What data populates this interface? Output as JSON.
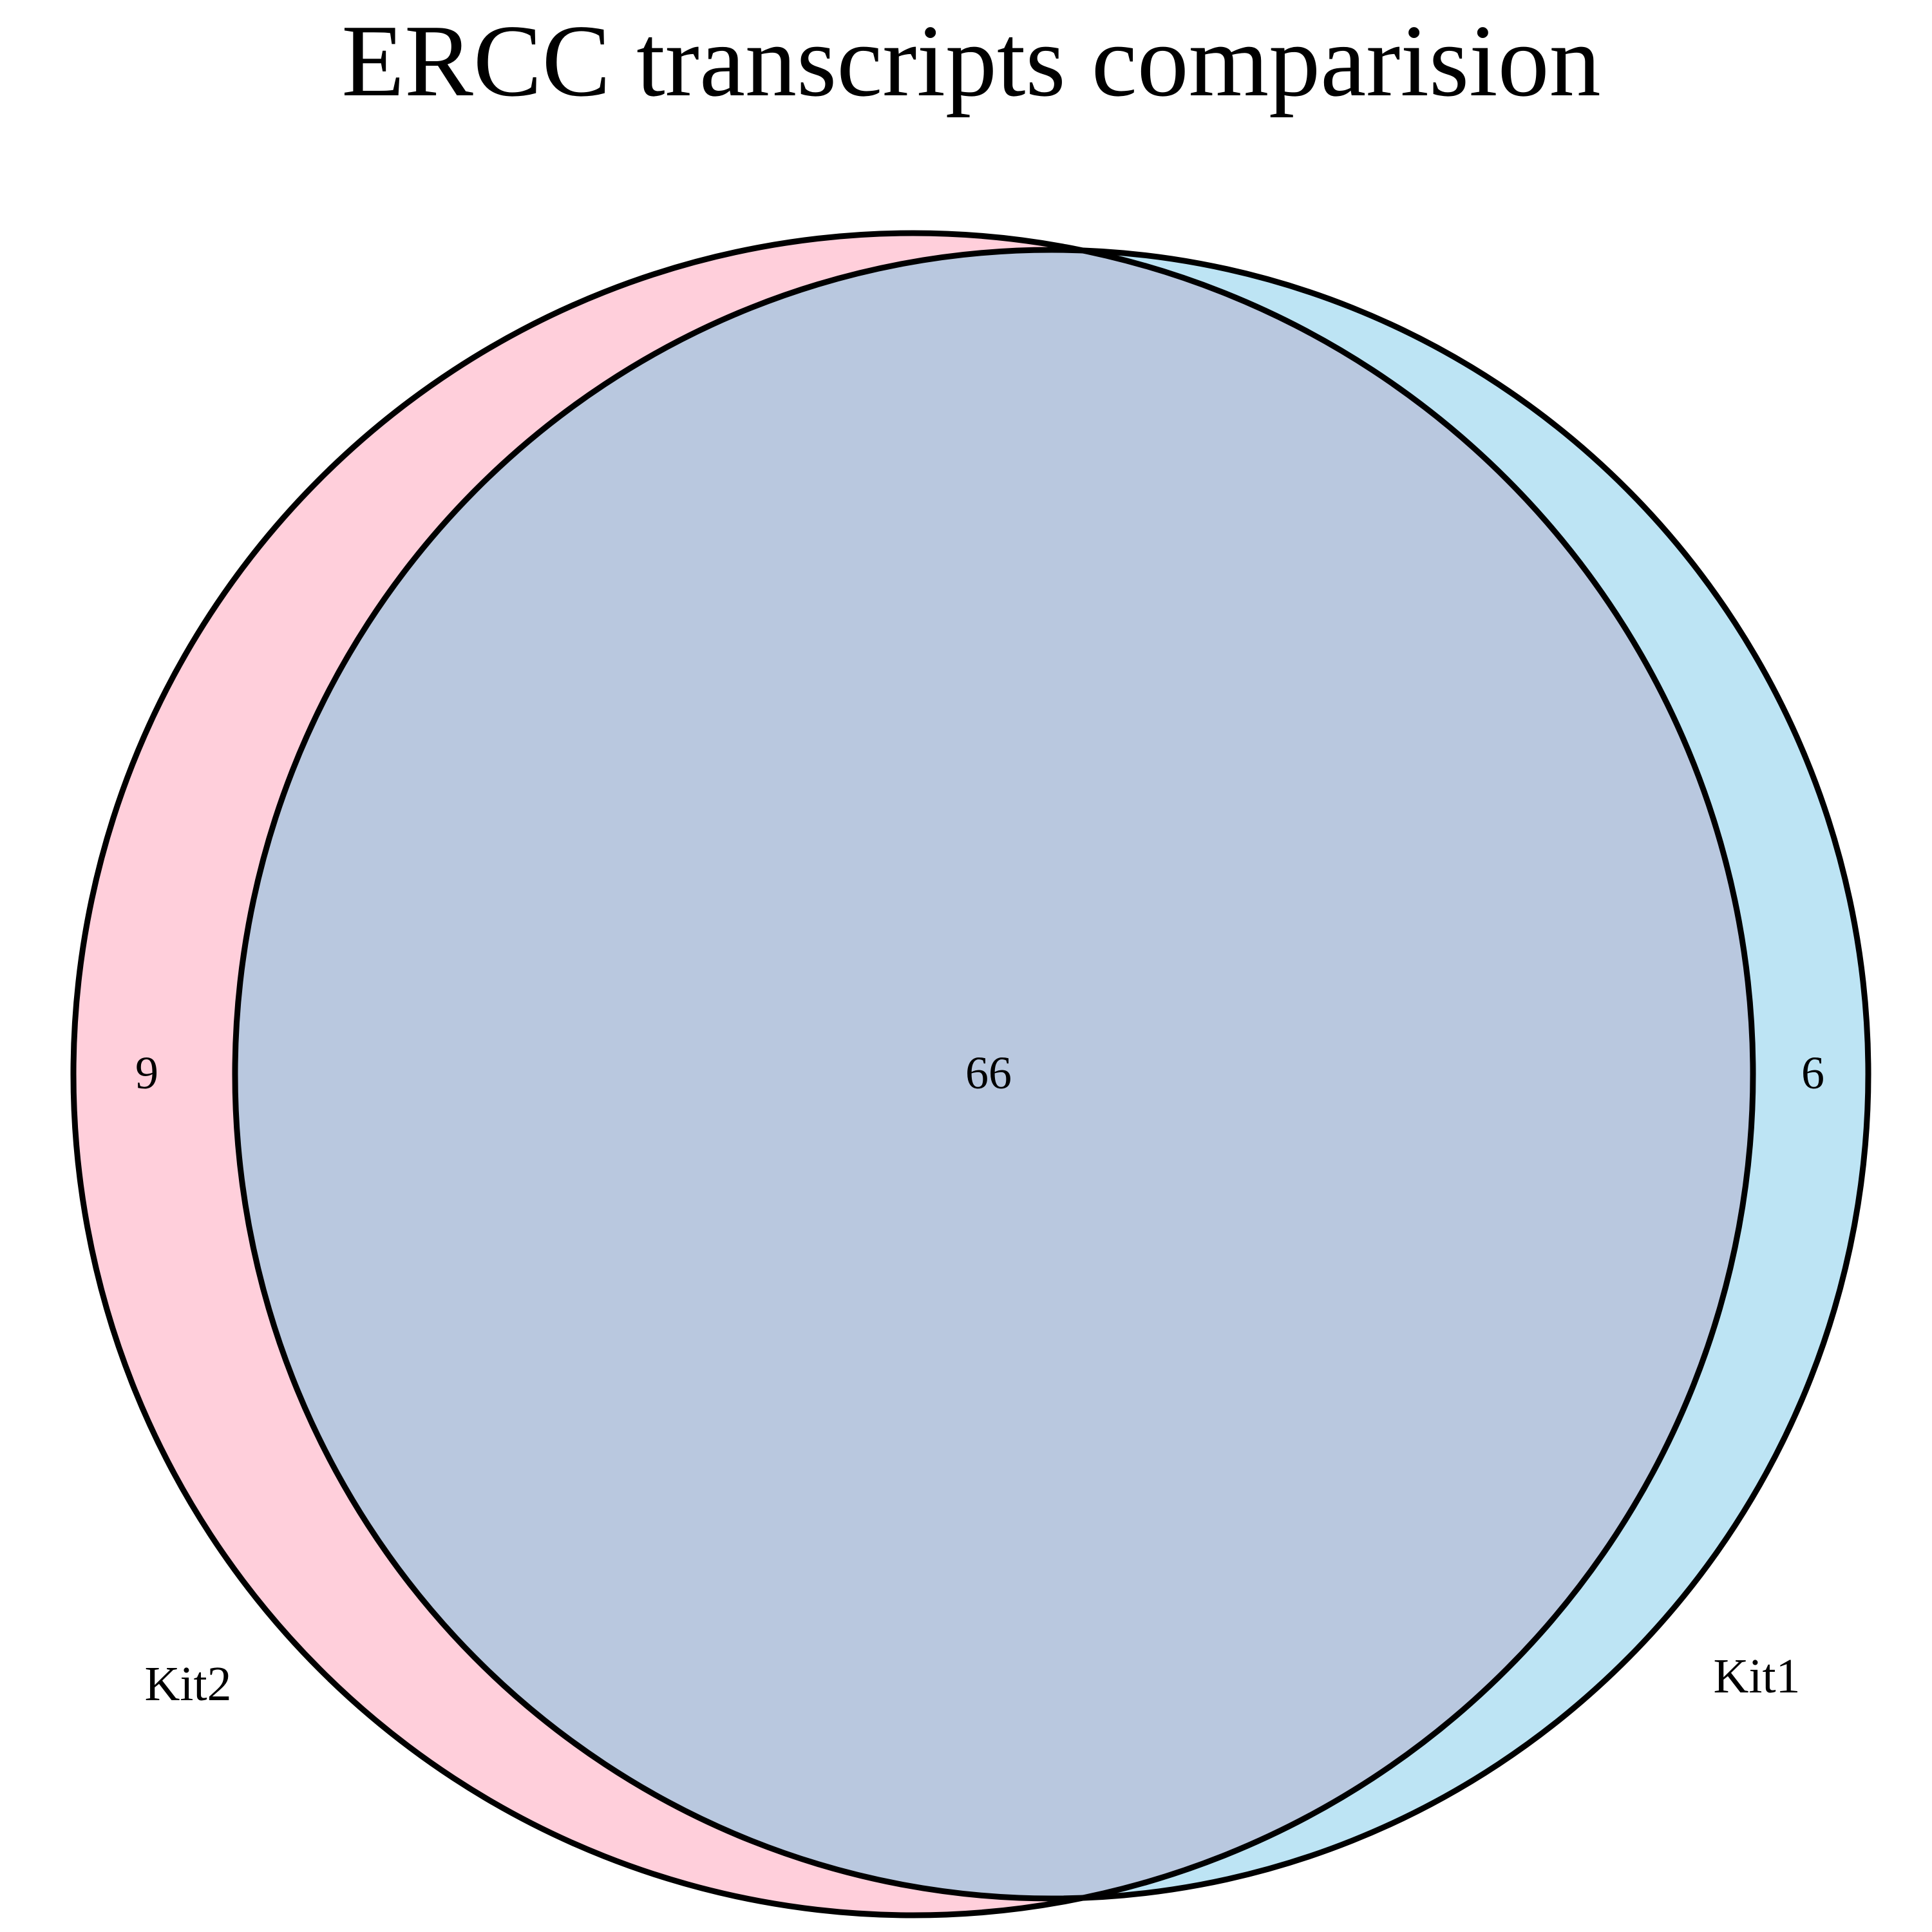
{
  "diagram": {
    "title": "ERCC transcripts comparision",
    "sets": [
      {
        "name": "Kit2",
        "label": "Kit2",
        "color": "#FFB6C8"
      },
      {
        "name": "Kit1",
        "label": "Kit1",
        "color": "#87CEEB"
      }
    ],
    "regions": {
      "kit2_only": "9",
      "intersection": "66",
      "kit1_only": "6"
    },
    "intersection_color": "#B9C8DF",
    "outline_color": "#000000"
  }
}
